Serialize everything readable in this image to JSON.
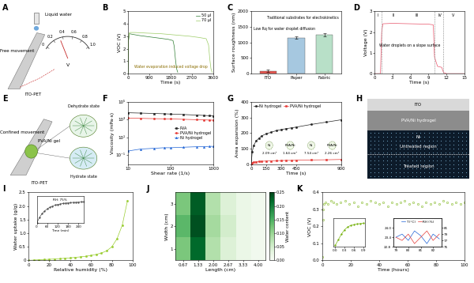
{
  "diagrams": [
    {
      "panel_label": "A",
      "texts": {
        "liquid": "Liquid water",
        "movement": "Free movement",
        "substrate": "ITO-PET",
        "unit": "V"
      },
      "meter_ticks": [
        "0",
        "0.2",
        "0.4",
        "0.6",
        "0.8",
        "1.0"
      ]
    },
    {
      "panel_label": "E",
      "texts": {
        "movement": "Confined movement",
        "gel": "PVA/Ni gel",
        "dry": "Dehydrate state",
        "wet": "Hydrate state",
        "substrate": "ITO-PET"
      }
    },
    {
      "panel_label": "H",
      "texts": {
        "top": "ITO",
        "gel": "PVA/Ni hydrogel",
        "metal": "Ni",
        "untreated": "Untreated region",
        "treated": "Treated region"
      }
    }
  ],
  "chart_data": [
    {
      "panel_label": "B",
      "type": "line",
      "x_label": "Time (s)",
      "y_label": "VOC (V)",
      "xlim": [
        0,
        3600
      ],
      "xticks": [
        0,
        900,
        1800,
        2700,
        3600
      ],
      "ylim": [
        0,
        5
      ],
      "yticks": [
        0,
        1,
        2,
        3,
        4,
        5
      ],
      "legend": "upper right",
      "annotations": [
        "Water evaporation induced voltage drop"
      ],
      "series": [
        {
          "name": "50 μl",
          "color": "#2e7d32",
          "line_style": "solid",
          "marker": "none",
          "x": [
            0,
            20,
            60,
            200,
            500,
            900,
            1300,
            1700,
            1900,
            1950,
            2000,
            2050,
            2100
          ],
          "values": [
            0,
            2.6,
            3.2,
            3.15,
            3.05,
            2.95,
            2.85,
            2.75,
            2.65,
            2.2,
            1.2,
            0.4,
            0.1
          ]
        },
        {
          "name": "70 μl",
          "color": "#9ccc65",
          "line_style": "solid",
          "marker": "none",
          "x": [
            0,
            20,
            60,
            300,
            800,
            1400,
            2000,
            2600,
            3000,
            3300,
            3400,
            3450,
            3500,
            3550
          ],
          "values": [
            0,
            2.8,
            3.3,
            3.3,
            3.25,
            3.2,
            3.1,
            3.0,
            2.9,
            2.8,
            2.3,
            1.2,
            0.4,
            0.1
          ]
        }
      ]
    },
    {
      "panel_label": "C",
      "type": "bar",
      "y_label": "Surface roughness (nm)",
      "categories": [
        "ITO",
        "Paper",
        "Fabric"
      ],
      "values": [
        90,
        1150,
        1250
      ],
      "errors": [
        40,
        40,
        50
      ],
      "colors": [
        "#e8544e",
        "#a6c8e0",
        "#b8e0c8"
      ],
      "ylim": [
        0,
        2000
      ],
      "yticks": [
        0,
        500,
        1000,
        1500,
        2000
      ],
      "annotations": [
        "Low Rq for water droplet diffusion",
        "Traditional substrates for electrokinetics"
      ]
    },
    {
      "panel_label": "D",
      "type": "line",
      "x_label": "Time (s)",
      "y_label": "Voltage (V)",
      "xlim": [
        0,
        15
      ],
      "xticks": [
        0,
        3,
        6,
        9,
        12,
        15
      ],
      "ylim": [
        0,
        3
      ],
      "yticks": [
        0,
        1,
        2,
        3
      ],
      "region_labels": [
        "I",
        "II",
        "III",
        "IV",
        "V"
      ],
      "region_boundaries": [
        1.2,
        10,
        11.5
      ],
      "annotations": [
        "Water droplets on a slope surface"
      ],
      "series": [
        {
          "color": "#e8546a",
          "line_style": "solid",
          "marker": "none",
          "x": [
            0,
            1.0,
            1.2,
            1.4,
            3,
            6,
            9,
            9.8,
            10.0,
            10.5,
            11.2,
            11.5,
            12,
            13,
            15
          ],
          "values": [
            0,
            0,
            2.0,
            2.4,
            2.42,
            2.4,
            2.38,
            2.35,
            0.8,
            0.35,
            0.3,
            0.05,
            0,
            0,
            0
          ]
        }
      ]
    },
    {
      "panel_label": "F",
      "type": "line",
      "x_label": "Shear rate (1/s)",
      "y_label": "Viscosity (mPa·s)",
      "log": true,
      "xlim": [
        10,
        1000
      ],
      "xticks": [
        10,
        100,
        1000
      ],
      "ylim": [
        0.01,
        100000
      ],
      "yticks": [
        {
          "value": 0.1,
          "label": "10⁻¹"
        },
        {
          "value": 10,
          "label": "10¹"
        },
        {
          "value": 1000,
          "label": "10³"
        },
        {
          "value": 100000,
          "label": "10⁵"
        }
      ],
      "legend": "center right",
      "series": [
        {
          "name": "PVA",
          "color": "#222222",
          "marker": "square",
          "line_style": "solid",
          "x": [
            10,
            20,
            40,
            70,
            100,
            200,
            400,
            600,
            800,
            1000
          ],
          "values": [
            6000,
            5500,
            5000,
            4600,
            4300,
            3800,
            3300,
            3000,
            2800,
            2600
          ]
        },
        {
          "name": "PVA/Ni hydrogel",
          "color": "#e53935",
          "marker": "circle",
          "line_style": "solid",
          "x": [
            10,
            20,
            40,
            70,
            100,
            200,
            400,
            600,
            800,
            1000
          ],
          "values": [
            1500,
            1400,
            1300,
            1250,
            1200,
            1100,
            1000,
            950,
            900,
            880
          ]
        },
        {
          "name": "Ni hydrogel",
          "color": "#1e63d6",
          "marker": "triangle",
          "line_style": "solid",
          "x": [
            10,
            20,
            40,
            70,
            100,
            200,
            400,
            600,
            800,
            1000
          ],
          "values": [
            0.3,
            0.5,
            0.6,
            0.7,
            0.7,
            0.8,
            0.9,
            0.9,
            1.0,
            1.0
          ]
        }
      ]
    },
    {
      "panel_label": "G",
      "type": "line",
      "x_label": "Time (s)",
      "y_label": "Area expansion (%)",
      "xlim": [
        0,
        900
      ],
      "xticks": [
        0,
        150,
        300,
        450,
        900
      ],
      "ylim": [
        0,
        400
      ],
      "yticks": [
        0,
        100,
        200,
        300,
        400
      ],
      "legend": "upper left",
      "area_labels": [
        {
          "sample": "Ni",
          "area": "2.09 cm²"
        },
        {
          "sample": "PVA/Ni",
          "area": "1.64 cm²"
        },
        {
          "sample": "Ni",
          "area": "7.54 cm²"
        },
        {
          "sample": "PVA/Ni",
          "area": "2.26 cm²"
        }
      ],
      "series": [
        {
          "name": "Ni hydrogel",
          "color": "#222222",
          "marker": "circle",
          "line_style": "solid",
          "x": [
            0,
            10,
            25,
            50,
            75,
            100,
            150,
            200,
            250,
            300,
            350,
            400,
            450,
            600,
            750,
            900
          ],
          "values": [
            0,
            80,
            120,
            150,
            165,
            180,
            195,
            205,
            215,
            222,
            228,
            233,
            238,
            255,
            270,
            285
          ]
        },
        {
          "name": "PVA/Ni hydrogel",
          "color": "#e53935",
          "marker": "square",
          "line_style": "solid",
          "x": [
            0,
            10,
            25,
            50,
            75,
            100,
            150,
            200,
            250,
            300,
            350,
            400,
            450,
            600,
            750,
            900
          ],
          "values": [
            0,
            8,
            12,
            15,
            17,
            18,
            20,
            21,
            22,
            23,
            24,
            24,
            25,
            27,
            28,
            30
          ]
        }
      ]
    },
    {
      "panel_label": "I",
      "type": "line",
      "x_label": "Relative humidity (%)",
      "y_label": "Water uptake (g/g)",
      "xlim": [
        0,
        100
      ],
      "xticks": [
        0,
        20,
        40,
        60,
        80,
        100
      ],
      "ylim": [
        0,
        2.5
      ],
      "yticks": [
        0,
        0.5,
        {
          "value": 1,
          "label": "1.0"
        },
        1.5,
        {
          "value": 2,
          "label": "2.0"
        },
        2.5
      ],
      "series": [
        {
          "color": "#9acd32",
          "marker": "circle",
          "line_style": "solid",
          "x": [
            0,
            5,
            10,
            15,
            20,
            25,
            30,
            35,
            40,
            45,
            50,
            55,
            60,
            65,
            70,
            75,
            80,
            85,
            90,
            95
          ],
          "values": [
            0,
            0.01,
            0.02,
            0.03,
            0.04,
            0.05,
            0.06,
            0.08,
            0.09,
            0.11,
            0.13,
            0.15,
            0.18,
            0.22,
            0.27,
            0.35,
            0.5,
            0.8,
            1.3,
            2.2
          ]
        }
      ],
      "insets": [
        {
          "type": "line",
          "x_label": "Time (min)",
          "annotations": [
            "RH: 75%"
          ],
          "tick_labels": "x",
          "xlim": [
            0,
            270
          ],
          "xticks": [
            0,
            60,
            120,
            180,
            240
          ],
          "ylim": [
            0,
            0.5
          ],
          "series": [
            {
              "color": "#555555",
              "marker": "circle",
              "line_style": "solid",
              "x": [
                0,
                15,
                30,
                45,
                60,
                75,
                90,
                105,
                120,
                135,
                150,
                165,
                180,
                195,
                210,
                225,
                240,
                255,
                270
              ],
              "values": [
                0,
                0.1,
                0.17,
                0.22,
                0.26,
                0.29,
                0.31,
                0.33,
                0.34,
                0.35,
                0.36,
                0.365,
                0.37,
                0.375,
                0.38,
                0.38,
                0.385,
                0.39,
                0.39
              ]
            }
          ]
        }
      ]
    },
    {
      "panel_label": "J",
      "type": "heatmap",
      "x_label": "Length (cm)",
      "y_label": "Width (cm)",
      "x_categories": [
        "0.67",
        "1.33",
        "2.00",
        "2.67",
        "3.33",
        "4.00"
      ],
      "y_categories": [
        "1",
        "2",
        "3"
      ],
      "cells": [
        [
          0.12,
          0.22,
          0.08,
          0.04,
          0.02,
          0.01
        ],
        [
          0.14,
          0.24,
          0.09,
          0.05,
          0.02,
          0.01
        ],
        [
          0.12,
          0.23,
          0.08,
          0.04,
          0.02,
          0.01
        ]
      ],
      "colorbar": {
        "label": "Water content",
        "range": [
          0,
          0.25
        ],
        "ticks": [
          {
            "value": 0,
            "label": "0.00"
          },
          0.05,
          {
            "value": 0.1,
            "label": "0.10"
          },
          0.15,
          {
            "value": 0.2,
            "label": "0.20"
          },
          0.25
        ]
      }
    },
    {
      "panel_label": "K",
      "type": "scatter",
      "x_label": "Time (hours)",
      "y_label": "VOC (V)",
      "xlim": [
        0,
        100
      ],
      "xticks": [
        0,
        20,
        40,
        60,
        80,
        100
      ],
      "ylim": [
        0,
        0.4
      ],
      "yticks": [
        {
          "value": 0,
          "label": "0.0"
        },
        0.1,
        0.2,
        0.3,
        0.4
      ],
      "series": [
        {
          "color": "#7cb518",
          "marker": "ring",
          "line_style": "none",
          "x": [
            0,
            0.3,
            0.6,
            0.9,
            2,
            4,
            6,
            8,
            10,
            13,
            16,
            19,
            22,
            25,
            28,
            31,
            34,
            37,
            40,
            43,
            46,
            49,
            52,
            55,
            58,
            61,
            64,
            67,
            70,
            73,
            76,
            79,
            82,
            85,
            88,
            91,
            94,
            97,
            100
          ],
          "values": [
            0.02,
            0.24,
            0.3,
            0.33,
            0.34,
            0.33,
            0.35,
            0.34,
            0.33,
            0.34,
            0.35,
            0.33,
            0.34,
            0.32,
            0.34,
            0.33,
            0.35,
            0.34,
            0.33,
            0.34,
            0.32,
            0.34,
            0.33,
            0.34,
            0.35,
            0.33,
            0.34,
            0.33,
            0.32,
            0.34,
            0.33,
            0.34,
            0.33,
            0.35,
            0.34,
            0.33,
            0.34,
            0.33,
            0.34
          ]
        }
      ],
      "insets": [
        {
          "type": "line",
          "tick_labels": "x",
          "xlim": [
            -0.05,
            0.95
          ],
          "xticks": [
            {
              "value": 0,
              "label": "0.0"
            },
            0.3,
            0.6,
            0.9
          ],
          "ylim": [
            0,
            0.4
          ],
          "series": [
            {
              "color": "#7cb518",
              "marker": "circle",
              "line_style": "solid",
              "x": [
                0,
                0.1,
                0.2,
                0.3,
                0.4,
                0.5,
                0.6,
                0.7,
                0.8,
                0.9
              ],
              "values": [
                0.02,
                0.1,
                0.18,
                0.24,
                0.28,
                0.3,
                0.31,
                0.32,
                0.325,
                0.33
              ]
            }
          ]
        },
        {
          "type": "line",
          "xlim": [
            78.8,
            82.7
          ],
          "xticks": [
            79,
            80,
            81,
            82
          ],
          "ylim": [
            22.8,
            24.6
          ],
          "yticks": [
            22.8,
            23.4,
            {
              "value": 24,
              "label": "24.0"
            }
          ],
          "y2lim": [
            75,
            84
          ],
          "y2ticks": [
            75,
            77,
            79,
            81
          ],
          "legend": "upper center",
          "series": [
            {
              "name": "T (°C)",
              "color": "#1e63d6",
              "marker": "none",
              "line_style": "solid",
              "x": [
                79,
                79.5,
                80,
                80.5,
                81,
                81.5,
                82,
                82.5
              ],
              "values": [
                23.4,
                23.6,
                23.2,
                23.8,
                23.5,
                23.0,
                23.6,
                23.3
              ]
            },
            {
              "name": "RH (%)",
              "color": "#e53935",
              "marker": "none",
              "line_style": "solid",
              "axis": "y2",
              "x": [
                79,
                79.5,
                80,
                80.5,
                81,
                81.5,
                82,
                82.5
              ],
              "values": [
                78,
                77,
                79,
                76,
                78,
                80,
                77,
                79
              ]
            }
          ]
        }
      ]
    }
  ]
}
